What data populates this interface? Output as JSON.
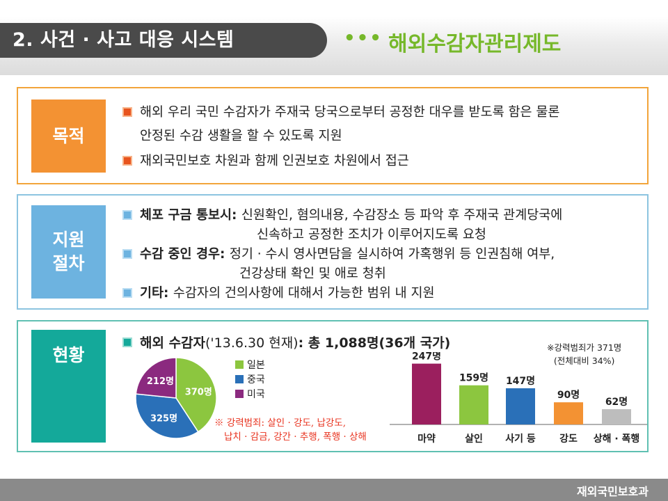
{
  "header": {
    "title": "2. 사건 · 사고 대응 시스템",
    "dots": "•••",
    "subtitle": "해외수감자관리제도"
  },
  "purpose": {
    "label": "목적",
    "bullets": [
      {
        "lines": [
          "해외 우리 국민 수감자가 주재국 당국으로부터 공정한 대우를 받도록 함은 물론",
          "안정된 수감 생활을 할 수 있도록 지원"
        ]
      },
      {
        "lines": [
          "재외국민보호 차원과 함께 인권보호 차원에서 접근"
        ]
      }
    ]
  },
  "procedure": {
    "label_line1": "지원",
    "label_line2": "절차",
    "items": [
      {
        "head": "체포 구금 통보시",
        "sep": ": ",
        "text1": "신원확인, 혐의내용, 수감장소 등 파악 후 주재국 관계당국에",
        "text2": "신속하고 공정한 조치가 이루어지도록 요청"
      },
      {
        "head": "수감 중인 경우",
        "sep": ": ",
        "text1": "정기 · 수시 영사면담을 실시하여 가혹행위 등 인권침해 여부,",
        "text2": "건강상태 확인 및 애로 청취"
      },
      {
        "head": "기타",
        "sep": ": ",
        "text1": "수감자의 건의사항에 대해서 가능한 범위 내 지원"
      }
    ]
  },
  "status": {
    "label": "현황",
    "heading_bold1": "해외 수감자",
    "heading_mid": "('13.6.30 현재)",
    "heading_bold2": ": 총 1,088명(36개 국가)",
    "footnote_line1": "※ 강력범죄: 살인 · 강도, 납강도,",
    "footnote_line2": "납치 · 감금, 강간 · 추행, 폭행 · 상해",
    "note_line1": "※강력범죄가 371명",
    "note_line2": "(전체대비 34%)"
  },
  "chart_data": [
    {
      "type": "pie",
      "title": "",
      "labels": [
        "일본",
        "중국",
        "미국"
      ],
      "values": [
        370,
        325,
        212
      ],
      "value_labels": [
        "370명",
        "325명",
        "212명"
      ],
      "colors": [
        "#8cc63f",
        "#2a70b8",
        "#8b2a7f"
      ],
      "legend_position": "right"
    },
    {
      "type": "bar",
      "title": "",
      "categories": [
        "마약",
        "살인",
        "사기 등",
        "강도",
        "상해 · 폭행"
      ],
      "values": [
        247,
        159,
        147,
        90,
        62
      ],
      "value_labels": [
        "247명",
        "159명",
        "147명",
        "90명",
        "62명"
      ],
      "colors": [
        "#9b1f5e",
        "#8cc63f",
        "#2a70b8",
        "#f39233",
        "#bdbdbd"
      ],
      "ylim": [
        0,
        260
      ],
      "grid": false
    }
  ],
  "footer": {
    "text": "재외국민보호과"
  }
}
